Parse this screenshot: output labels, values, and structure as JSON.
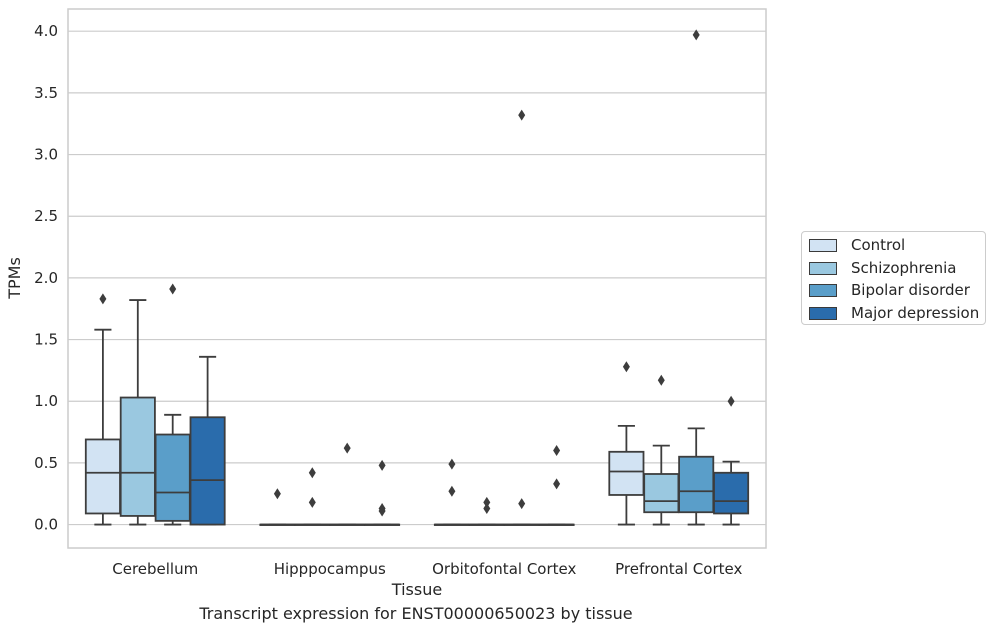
{
  "caption": "Transcript expression for ENST00000650023 by tissue",
  "chart_data": {
    "type": "box",
    "xlabel": "Tissue",
    "ylabel": "TPMs",
    "ylim": [
      -0.19,
      4.18
    ],
    "yticks": [
      "0.0",
      "0.5",
      "1.0",
      "1.5",
      "2.0",
      "2.5",
      "3.0",
      "3.5",
      "4.0"
    ],
    "ytick_values": [
      0,
      0.5,
      1,
      1.5,
      2,
      2.5,
      3,
      3.5,
      4
    ],
    "grid": "horizontal",
    "legend_position": "right",
    "categories": [
      "Cerebellum",
      "Hipppocampus",
      "Orbitofontal Cortex",
      "Prefrontal Cortex"
    ],
    "series": [
      {
        "name": "Control",
        "color": "#d2e3f3",
        "boxes": [
          {
            "whislo": 0,
            "q1": 0.09,
            "med": 0.42,
            "q3": 0.69,
            "whishi": 1.58,
            "fliers": [
              1.83
            ]
          },
          {
            "whislo": 0,
            "q1": 0,
            "med": 0,
            "q3": 0,
            "whishi": 0,
            "fliers": [
              0.25
            ]
          },
          {
            "whislo": 0,
            "q1": 0,
            "med": 0,
            "q3": 0,
            "whishi": 0,
            "fliers": [
              0.49,
              0.27
            ]
          },
          {
            "whislo": 0,
            "q1": 0.24,
            "med": 0.43,
            "q3": 0.59,
            "whishi": 0.8,
            "fliers": [
              1.28
            ]
          }
        ]
      },
      {
        "name": "Schizophrenia",
        "color": "#9ac8e0",
        "boxes": [
          {
            "whislo": 0,
            "q1": 0.07,
            "med": 0.42,
            "q3": 1.03,
            "whishi": 1.82,
            "fliers": []
          },
          {
            "whislo": 0,
            "q1": 0,
            "med": 0,
            "q3": 0,
            "whishi": 0,
            "fliers": [
              0.42,
              0.18
            ]
          },
          {
            "whislo": 0,
            "q1": 0,
            "med": 0,
            "q3": 0,
            "whishi": 0,
            "fliers": [
              0.18,
              0.13
            ]
          },
          {
            "whislo": 0,
            "q1": 0.1,
            "med": 0.19,
            "q3": 0.41,
            "whishi": 0.64,
            "fliers": [
              1.17
            ]
          }
        ]
      },
      {
        "name": "Bipolar disorder",
        "color": "#5a9ec9",
        "boxes": [
          {
            "whislo": 0,
            "q1": 0.03,
            "med": 0.26,
            "q3": 0.73,
            "whishi": 0.89,
            "fliers": [
              1.91
            ]
          },
          {
            "whislo": 0,
            "q1": 0,
            "med": 0,
            "q3": 0,
            "whishi": 0,
            "fliers": [
              0.62
            ]
          },
          {
            "whislo": 0,
            "q1": 0,
            "med": 0,
            "q3": 0,
            "whishi": 0,
            "fliers": [
              3.32,
              0.17
            ]
          },
          {
            "whislo": 0,
            "q1": 0.1,
            "med": 0.27,
            "q3": 0.55,
            "whishi": 0.78,
            "fliers": [
              3.97
            ]
          }
        ]
      },
      {
        "name": "Major depression",
        "color": "#2a6cac",
        "boxes": [
          {
            "whislo": 0,
            "q1": 0,
            "med": 0.36,
            "q3": 0.87,
            "whishi": 1.36,
            "fliers": []
          },
          {
            "whislo": 0,
            "q1": 0,
            "med": 0,
            "q3": 0,
            "whishi": 0,
            "fliers": [
              0.48,
              0.13,
              0.11
            ]
          },
          {
            "whislo": 0,
            "q1": 0,
            "med": 0,
            "q3": 0,
            "whishi": 0,
            "fliers": [
              0.6,
              0.33
            ]
          },
          {
            "whislo": 0,
            "q1": 0.09,
            "med": 0.19,
            "q3": 0.42,
            "whishi": 0.51,
            "fliers": [
              1.0
            ]
          }
        ]
      }
    ]
  }
}
